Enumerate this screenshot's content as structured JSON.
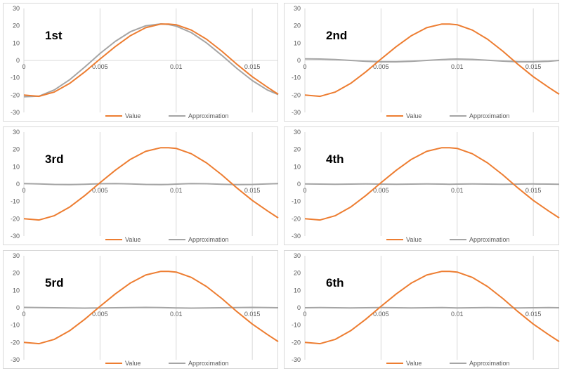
{
  "colors": {
    "value": "#ED7D31",
    "approximation": "#A5A5A5",
    "grid": "#D9D9D9",
    "frame": "#D9D9D9"
  },
  "chart_data": [
    {
      "type": "line",
      "title": "1st",
      "x_ticks": [
        0,
        0.005,
        0.01,
        0.015
      ],
      "x_tick_labels": [
        "0",
        "0.005",
        "0.01",
        "0.015"
      ],
      "y_ticks": [
        -30,
        -20,
        -10,
        0,
        10,
        20,
        30
      ],
      "y_tick_labels": [
        "-30",
        "-20",
        "-10",
        "0",
        "10",
        "20",
        "30"
      ],
      "xlim": [
        0,
        0.0167
      ],
      "ylim": [
        -30,
        30
      ],
      "grid": "vertical",
      "legend": "bottom",
      "series": [
        {
          "name": "Value",
          "x": [
            0,
            0.001,
            0.002,
            0.003,
            0.004,
            0.005,
            0.006,
            0.007,
            0.008,
            0.009,
            0.0095,
            0.01,
            0.011,
            0.012,
            0.013,
            0.014,
            0.015,
            0.016,
            0.0167
          ],
          "y": [
            -20,
            -20.7,
            -18.2,
            -13.3,
            -6.6,
            0.8,
            8.0,
            14.3,
            18.9,
            21.0,
            21.0,
            20.6,
            17.5,
            12.2,
            5.3,
            -2.3,
            -9.4,
            -15.5,
            -19.5
          ]
        },
        {
          "name": "Approximation",
          "x": [
            0,
            0.001,
            0.002,
            0.003,
            0.004,
            0.005,
            0.006,
            0.007,
            0.008,
            0.009,
            0.0095,
            0.01,
            0.011,
            0.012,
            0.013,
            0.014,
            0.015,
            0.016,
            0.0167
          ],
          "y": [
            -21,
            -20.6,
            -17.0,
            -11.2,
            -3.8,
            4.0,
            11.0,
            16.6,
            20.0,
            21.1,
            20.7,
            19.8,
            16.0,
            10.1,
            2.9,
            -4.7,
            -11.6,
            -17.1,
            -19.7
          ]
        }
      ]
    },
    {
      "type": "line",
      "title": "2nd",
      "x_ticks": [
        0,
        0.005,
        0.01,
        0.015
      ],
      "x_tick_labels": [
        "0",
        "0.005",
        "0.01",
        "0.015"
      ],
      "y_ticks": [
        -30,
        -20,
        -10,
        0,
        10,
        20,
        30
      ],
      "y_tick_labels": [
        "-30",
        "-20",
        "-10",
        "0",
        "10",
        "20",
        "30"
      ],
      "xlim": [
        0,
        0.0167
      ],
      "ylim": [
        -30,
        30
      ],
      "grid": "vertical",
      "legend": "bottom",
      "series": [
        {
          "name": "Value",
          "x": [
            0,
            0.001,
            0.002,
            0.003,
            0.004,
            0.005,
            0.006,
            0.007,
            0.008,
            0.009,
            0.0095,
            0.01,
            0.011,
            0.012,
            0.013,
            0.014,
            0.015,
            0.016,
            0.0167
          ],
          "y": [
            -20,
            -20.7,
            -18.2,
            -13.3,
            -6.6,
            0.8,
            8.0,
            14.3,
            18.9,
            21.0,
            21.0,
            20.6,
            17.5,
            12.2,
            5.3,
            -2.3,
            -9.4,
            -15.5,
            -19.5
          ]
        },
        {
          "name": "Approximation",
          "x": [
            0,
            0.001,
            0.002,
            0.003,
            0.004,
            0.005,
            0.006,
            0.007,
            0.008,
            0.009,
            0.0095,
            0.01,
            0.011,
            0.012,
            0.013,
            0.014,
            0.015,
            0.016,
            0.0167
          ],
          "y": [
            0.9,
            0.8,
            0.5,
            0.0,
            -0.5,
            -0.8,
            -0.8,
            -0.5,
            0.0,
            0.5,
            0.7,
            0.8,
            0.6,
            0.1,
            -0.4,
            -0.8,
            -0.8,
            -0.5,
            0.0
          ]
        }
      ]
    },
    {
      "type": "line",
      "title": "3rd",
      "x_ticks": [
        0,
        0.005,
        0.01,
        0.015
      ],
      "x_tick_labels": [
        "0",
        "0.005",
        "0.01",
        "0.015"
      ],
      "y_ticks": [
        -30,
        -20,
        -10,
        0,
        10,
        20,
        30
      ],
      "y_tick_labels": [
        "-30",
        "-20",
        "-10",
        "0",
        "10",
        "20",
        "30"
      ],
      "xlim": [
        0,
        0.0167
      ],
      "ylim": [
        -30,
        30
      ],
      "grid": "vertical",
      "legend": "bottom",
      "series": [
        {
          "name": "Value",
          "x": [
            0,
            0.001,
            0.002,
            0.003,
            0.004,
            0.005,
            0.006,
            0.007,
            0.008,
            0.009,
            0.0095,
            0.01,
            0.011,
            0.012,
            0.013,
            0.014,
            0.015,
            0.016,
            0.0167
          ],
          "y": [
            -20,
            -20.7,
            -18.2,
            -13.3,
            -6.6,
            0.8,
            8.0,
            14.3,
            18.9,
            21.0,
            21.0,
            20.6,
            17.5,
            12.2,
            5.3,
            -2.3,
            -9.4,
            -15.5,
            -19.5
          ]
        },
        {
          "name": "Approximation",
          "x": [
            0,
            0.001,
            0.002,
            0.003,
            0.004,
            0.005,
            0.006,
            0.007,
            0.008,
            0.009,
            0.0095,
            0.01,
            0.011,
            0.012,
            0.013,
            0.014,
            0.015,
            0.016,
            0.0167
          ],
          "y": [
            0.3,
            0.1,
            -0.2,
            -0.3,
            -0.1,
            0.2,
            0.3,
            0.1,
            -0.2,
            -0.3,
            -0.2,
            0.0,
            0.3,
            0.2,
            -0.1,
            -0.3,
            -0.2,
            0.1,
            0.3
          ]
        }
      ]
    },
    {
      "type": "line",
      "title": "4th",
      "x_ticks": [
        0,
        0.005,
        0.01,
        0.015
      ],
      "x_tick_labels": [
        "0",
        "0.005",
        "0.01",
        "0.015"
      ],
      "y_ticks": [
        -30,
        -20,
        -10,
        0,
        10,
        20,
        30
      ],
      "y_tick_labels": [
        "-30",
        "-20",
        "-10",
        "0",
        "10",
        "20",
        "30"
      ],
      "xlim": [
        0,
        0.0167
      ],
      "ylim": [
        -30,
        30
      ],
      "grid": "vertical",
      "legend": "bottom",
      "series": [
        {
          "name": "Value",
          "x": [
            0,
            0.001,
            0.002,
            0.003,
            0.004,
            0.005,
            0.006,
            0.007,
            0.008,
            0.009,
            0.0095,
            0.01,
            0.011,
            0.012,
            0.013,
            0.014,
            0.015,
            0.016,
            0.0167
          ],
          "y": [
            -20,
            -20.7,
            -18.2,
            -13.3,
            -6.6,
            0.8,
            8.0,
            14.3,
            18.9,
            21.0,
            21.0,
            20.6,
            17.5,
            12.2,
            5.3,
            -2.3,
            -9.4,
            -15.5,
            -19.5
          ]
        },
        {
          "name": "Approximation",
          "x": [
            0,
            0.001,
            0.002,
            0.003,
            0.004,
            0.005,
            0.006,
            0.007,
            0.008,
            0.009,
            0.0095,
            0.01,
            0.011,
            0.012,
            0.013,
            0.014,
            0.015,
            0.016,
            0.0167
          ],
          "y": [
            0.1,
            0.0,
            -0.1,
            0.0,
            0.1,
            0.0,
            -0.1,
            0.0,
            0.1,
            0.0,
            -0.1,
            0.0,
            0.1,
            0.0,
            -0.1,
            0.0,
            0.1,
            0.0,
            -0.1
          ]
        }
      ]
    },
    {
      "type": "line",
      "title": "5rd",
      "x_ticks": [
        0,
        0.005,
        0.01,
        0.015
      ],
      "x_tick_labels": [
        "0",
        "0.005",
        "0.01",
        "0.015"
      ],
      "y_ticks": [
        -30,
        -20,
        -10,
        0,
        10,
        20,
        30
      ],
      "y_tick_labels": [
        "-30",
        "-20",
        "-10",
        "0",
        "10",
        "20",
        "30"
      ],
      "xlim": [
        0,
        0.0167
      ],
      "ylim": [
        -30,
        30
      ],
      "grid": "vertical",
      "legend": "bottom",
      "series": [
        {
          "name": "Value",
          "x": [
            0,
            0.001,
            0.002,
            0.003,
            0.004,
            0.005,
            0.006,
            0.007,
            0.008,
            0.009,
            0.0095,
            0.01,
            0.011,
            0.012,
            0.013,
            0.014,
            0.015,
            0.016,
            0.0167
          ],
          "y": [
            -20,
            -20.7,
            -18.2,
            -13.3,
            -6.6,
            0.8,
            8.0,
            14.3,
            18.9,
            21.0,
            21.0,
            20.6,
            17.5,
            12.2,
            5.3,
            -2.3,
            -9.4,
            -15.5,
            -19.5
          ]
        },
        {
          "name": "Approximation",
          "x": [
            0,
            0.001,
            0.002,
            0.003,
            0.004,
            0.005,
            0.006,
            0.007,
            0.008,
            0.009,
            0.0095,
            0.01,
            0.011,
            0.012,
            0.013,
            0.014,
            0.015,
            0.016,
            0.0167
          ],
          "y": [
            0.2,
            0.1,
            0.0,
            -0.1,
            -0.2,
            -0.1,
            0.0,
            0.1,
            0.2,
            0.1,
            0.0,
            -0.1,
            -0.2,
            -0.1,
            0.0,
            0.1,
            0.2,
            0.1,
            0.0
          ]
        }
      ]
    },
    {
      "type": "line",
      "title": "6th",
      "x_ticks": [
        0,
        0.005,
        0.01,
        0.015
      ],
      "x_tick_labels": [
        "0",
        "0.005",
        "0.01",
        "0.015"
      ],
      "y_ticks": [
        -30,
        -20,
        -10,
        0,
        10,
        20,
        30
      ],
      "y_tick_labels": [
        "-30",
        "-20",
        "-10",
        "0",
        "10",
        "20",
        "30"
      ],
      "xlim": [
        0,
        0.0167
      ],
      "ylim": [
        -30,
        30
      ],
      "grid": "vertical",
      "legend": "bottom",
      "series": [
        {
          "name": "Value",
          "x": [
            0,
            0.001,
            0.002,
            0.003,
            0.004,
            0.005,
            0.006,
            0.007,
            0.008,
            0.009,
            0.0095,
            0.01,
            0.011,
            0.012,
            0.013,
            0.014,
            0.015,
            0.016,
            0.0167
          ],
          "y": [
            -20,
            -20.7,
            -18.2,
            -13.3,
            -6.6,
            0.8,
            8.0,
            14.3,
            18.9,
            21.0,
            21.0,
            20.6,
            17.5,
            12.2,
            5.3,
            -2.3,
            -9.4,
            -15.5,
            -19.5
          ]
        },
        {
          "name": "Approximation",
          "x": [
            0,
            0.001,
            0.002,
            0.003,
            0.004,
            0.005,
            0.006,
            0.007,
            0.008,
            0.009,
            0.0095,
            0.01,
            0.011,
            0.012,
            0.013,
            0.014,
            0.015,
            0.016,
            0.0167
          ],
          "y": [
            0.0,
            0.1,
            0.0,
            -0.1,
            0.0,
            0.1,
            0.0,
            -0.1,
            0.0,
            0.1,
            0.0,
            -0.1,
            0.0,
            0.1,
            0.0,
            -0.1,
            0.0,
            0.1,
            0.0
          ]
        }
      ]
    }
  ]
}
